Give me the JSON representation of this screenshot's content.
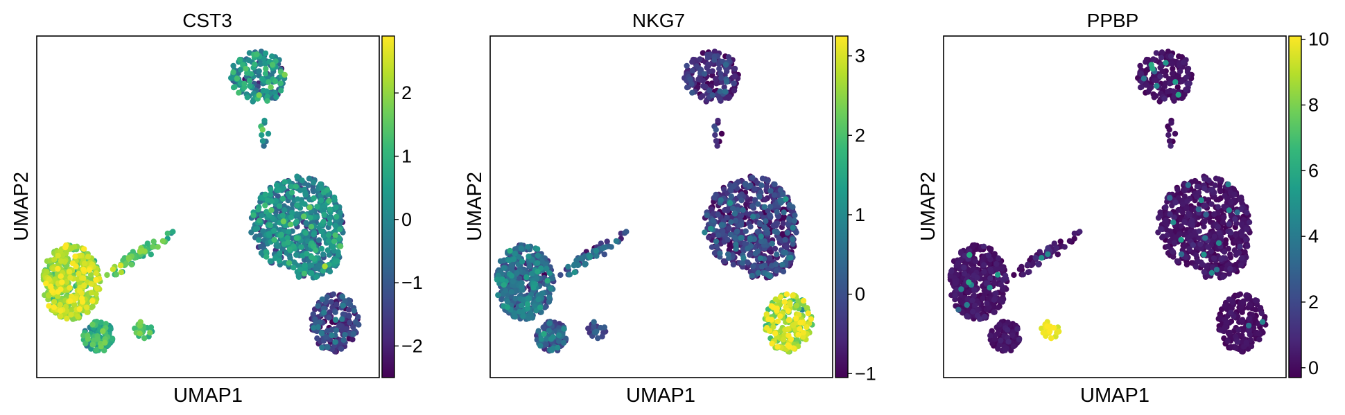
{
  "colormap": "viridis",
  "colormap_stops": [
    "#440154",
    "#482878",
    "#3e4989",
    "#31688e",
    "#26828e",
    "#1f9e89",
    "#35b779",
    "#6ece58",
    "#b5de2b",
    "#fde725"
  ],
  "chart_data": [
    {
      "type": "scatter",
      "title": "CST3",
      "xlabel": "UMAP1",
      "ylabel": "UMAP2",
      "colorbar": {
        "min": -2.5,
        "max": 2.9,
        "ticks": [
          -2,
          -1,
          0,
          1,
          2
        ],
        "tick_labels": [
          "−2",
          "−1",
          "0",
          "1",
          "2"
        ]
      },
      "grid": false,
      "clusters": [
        {
          "name": "top",
          "value": 0.0,
          "spread": 0.8
        },
        {
          "name": "center-large",
          "value": -0.2,
          "spread": 0.7
        },
        {
          "name": "tail-lower-right",
          "value": -1.6,
          "spread": 0.6
        },
        {
          "name": "left-main",
          "value": 2.0,
          "spread": 0.5
        },
        {
          "name": "left-bottom",
          "value": 0.7,
          "spread": 0.6
        },
        {
          "name": "left-arm",
          "value": 1.4,
          "spread": 0.5
        },
        {
          "name": "small-blob",
          "value": 1.2,
          "spread": 0.6
        },
        {
          "name": "bridge",
          "value": 0.2,
          "spread": 0.6
        }
      ]
    },
    {
      "type": "scatter",
      "title": "NKG7",
      "xlabel": "UMAP1",
      "ylabel": "UMAP2",
      "colorbar": {
        "min": -1.05,
        "max": 3.25,
        "ticks": [
          -1,
          0,
          1,
          2,
          3
        ],
        "tick_labels": [
          "−1",
          "0",
          "1",
          "2",
          "3"
        ]
      },
      "grid": false,
      "clusters": [
        {
          "name": "top",
          "value": -0.5,
          "spread": 0.4
        },
        {
          "name": "center-large",
          "value": -0.4,
          "spread": 0.5
        },
        {
          "name": "tail-lower-right",
          "value": 2.6,
          "spread": 0.5
        },
        {
          "name": "left-main",
          "value": 0.3,
          "spread": 0.5
        },
        {
          "name": "left-bottom",
          "value": 0.0,
          "spread": 0.5
        },
        {
          "name": "left-arm",
          "value": 0.2,
          "spread": 0.5
        },
        {
          "name": "small-blob",
          "value": 0.0,
          "spread": 0.5
        },
        {
          "name": "bridge",
          "value": -0.5,
          "spread": 0.4
        }
      ]
    },
    {
      "type": "scatter",
      "title": "PPBP",
      "xlabel": "UMAP1",
      "ylabel": "UMAP2",
      "colorbar": {
        "min": -0.3,
        "max": 10.1,
        "ticks": [
          0,
          2,
          4,
          6,
          8,
          10
        ],
        "tick_labels": [
          "0",
          "2",
          "4",
          "6",
          "8",
          "10"
        ]
      },
      "grid": false,
      "clusters": [
        {
          "name": "top",
          "value": 0.1,
          "spread": 0.3
        },
        {
          "name": "center-large",
          "value": 0.1,
          "spread": 0.3
        },
        {
          "name": "tail-lower-right",
          "value": 0.0,
          "spread": 0.2
        },
        {
          "name": "left-main",
          "value": 0.1,
          "spread": 0.3
        },
        {
          "name": "left-bottom",
          "value": 0.1,
          "spread": 0.3
        },
        {
          "name": "left-arm",
          "value": 0.2,
          "spread": 0.4
        },
        {
          "name": "small-blob",
          "value": 9.8,
          "spread": 0.3
        },
        {
          "name": "bridge",
          "value": 0.1,
          "spread": 0.3
        }
      ]
    }
  ]
}
